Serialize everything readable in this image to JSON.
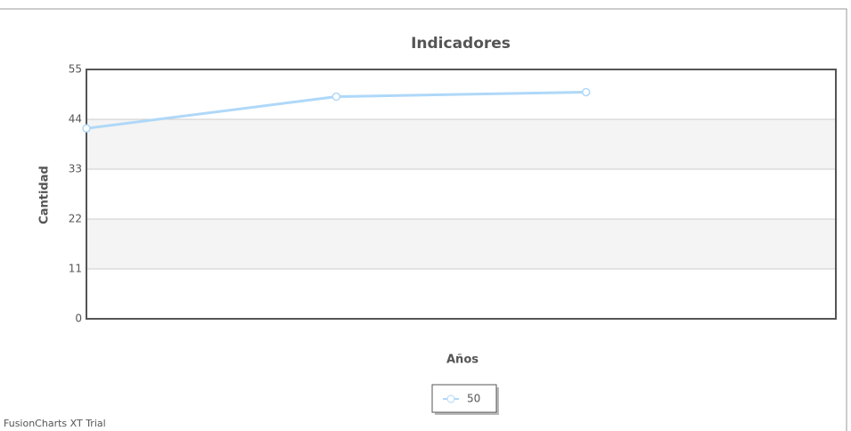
{
  "chart_data": {
    "type": "line",
    "title": "Indicadores",
    "x_label": "Años",
    "y_label": "Cantidad",
    "categories": [
      null,
      null,
      null,
      null
    ],
    "series": [
      {
        "name": "50",
        "color": "#afd8f8",
        "values": [
          42,
          49,
          50,
          null
        ]
      }
    ],
    "ylim": [
      0,
      55
    ],
    "yticks": [
      0,
      11,
      22,
      33,
      44,
      55
    ],
    "grid": true,
    "legend": "bottom",
    "footer": "FusionCharts XT Trial"
  }
}
